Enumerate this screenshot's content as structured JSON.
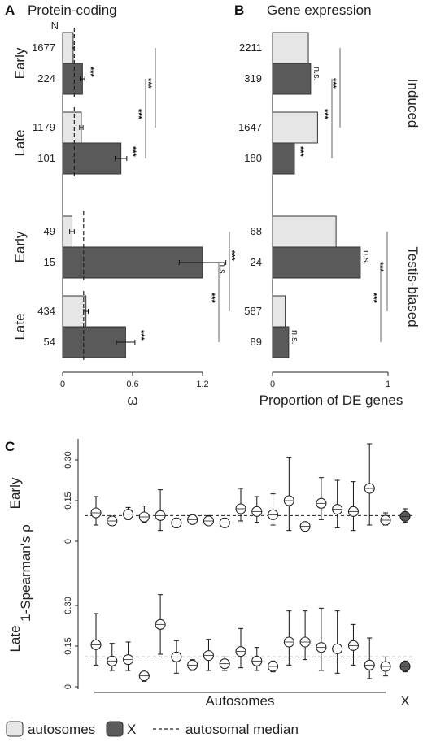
{
  "panels": {
    "a": {
      "letter": "A",
      "title": "Protein-coding"
    },
    "b": {
      "letter": "B",
      "title": "Gene expression"
    },
    "c": {
      "letter": "C"
    }
  },
  "colors": {
    "autosomes": "#e6e6e6",
    "x": "#5a5a5a",
    "outline": "#333333"
  },
  "chart_data": [
    {
      "type": "bar",
      "orientation": "horizontal",
      "panel": "A",
      "title": "Protein-coding",
      "xlabel": "ω",
      "n_header": "N",
      "xlim": [
        0,
        1.2
      ],
      "xticks": [
        "0",
        "0.6",
        "1.2"
      ],
      "groups": [
        {
          "stage": "Early",
          "category": "Induced",
          "median": 0.1,
          "bars": [
            {
              "n": "1677",
              "kind": "autosomes",
              "value": 0.09,
              "err": 0.01,
              "sig": ""
            },
            {
              "n": "224",
              "kind": "X",
              "value": 0.17,
              "err": 0.02,
              "sig": "***"
            }
          ]
        },
        {
          "stage": "Late",
          "category": "Induced",
          "median": 0.1,
          "bars": [
            {
              "n": "1179",
              "kind": "autosomes",
              "value": 0.16,
              "err": 0.015,
              "sig": ""
            },
            {
              "n": "101",
              "kind": "X",
              "value": 0.5,
              "err": 0.05,
              "sig": "***"
            }
          ]
        },
        {
          "stage": "Early",
          "category": "Testis-biased",
          "median": 0.18,
          "bars": [
            {
              "n": "49",
              "kind": "autosomes",
              "value": 0.08,
              "err": 0.02,
              "sig": ""
            },
            {
              "n": "15",
              "kind": "X",
              "value": 1.2,
              "err": 0.2,
              "sig": "***"
            }
          ]
        },
        {
          "stage": "Late",
          "category": "Testis-biased",
          "median": 0.18,
          "bars": [
            {
              "n": "434",
              "kind": "autosomes",
              "value": 0.2,
              "err": 0.02,
              "sig": ""
            },
            {
              "n": "54",
              "kind": "X",
              "value": 0.54,
              "err": 0.08,
              "sig": "***"
            }
          ]
        }
      ],
      "brackets": [
        {
          "from": [
            0,
            1
          ],
          "to": [
            1,
            1
          ],
          "sig": "***"
        },
        {
          "from": [
            0,
            0
          ],
          "to": [
            1,
            0
          ],
          "sig": "***"
        },
        {
          "from": [
            2,
            1
          ],
          "to": [
            3,
            1
          ],
          "sig": "***"
        },
        {
          "from": [
            2,
            0
          ],
          "to": [
            3,
            0
          ],
          "sig": "n.s."
        }
      ]
    },
    {
      "type": "bar",
      "orientation": "horizontal",
      "panel": "B",
      "title": "Gene expression",
      "xlabel": "Proportion of DE genes",
      "xlim": [
        0,
        1
      ],
      "xticks": [
        "0",
        "1"
      ],
      "groups": [
        {
          "stage": "Early",
          "category": "Induced",
          "bars": [
            {
              "n": "2211",
              "kind": "autosomes",
              "value": 0.31
            },
            {
              "n": "319",
              "kind": "X",
              "value": 0.33,
              "sig": "n.s."
            }
          ]
        },
        {
          "stage": "Late",
          "category": "Induced",
          "bars": [
            {
              "n": "1647",
              "kind": "autosomes",
              "value": 0.39
            },
            {
              "n": "180",
              "kind": "X",
              "value": 0.19,
              "sig": "***"
            }
          ]
        },
        {
          "stage": "Early",
          "category": "Testis-biased",
          "bars": [
            {
              "n": "68",
              "kind": "autosomes",
              "value": 0.55
            },
            {
              "n": "24",
              "kind": "X",
              "value": 0.76,
              "sig": "n.s."
            }
          ]
        },
        {
          "stage": "Late",
          "category": "Testis-biased",
          "bars": [
            {
              "n": "587",
              "kind": "autosomes",
              "value": 0.11
            },
            {
              "n": "89",
              "kind": "X",
              "value": 0.14,
              "sig": "n.s."
            }
          ]
        }
      ],
      "brackets": [
        {
          "from": [
            0,
            1
          ],
          "to": [
            1,
            1
          ],
          "sig": "***"
        },
        {
          "from": [
            0,
            0
          ],
          "to": [
            1,
            0
          ],
          "sig": "***"
        },
        {
          "from": [
            2,
            1
          ],
          "to": [
            3,
            1
          ],
          "sig": "***"
        },
        {
          "from": [
            2,
            0
          ],
          "to": [
            3,
            0
          ],
          "sig": "***"
        }
      ],
      "side_labels": [
        "Induced",
        "Testis-biased"
      ]
    },
    {
      "type": "scatter",
      "panel": "C",
      "ylabel": "1-Spearman's ρ",
      "yticks": [
        "0",
        "0.15",
        "0.30"
      ],
      "ylim": [
        0,
        0.36
      ],
      "x_group_labels": [
        "Autosomes",
        "X"
      ],
      "series": [
        {
          "name": "Early",
          "autosomes": [
            {
              "y": 0.105,
              "lo": 0.06,
              "hi": 0.165
            },
            {
              "y": 0.075,
              "lo": 0.06,
              "hi": 0.09
            },
            {
              "y": 0.1,
              "lo": 0.08,
              "hi": 0.125
            },
            {
              "y": 0.09,
              "lo": 0.07,
              "hi": 0.13
            },
            {
              "y": 0.095,
              "lo": 0.04,
              "hi": 0.19
            },
            {
              "y": 0.068,
              "lo": 0.05,
              "hi": 0.085
            },
            {
              "y": 0.08,
              "lo": 0.065,
              "hi": 0.1
            },
            {
              "y": 0.075,
              "lo": 0.06,
              "hi": 0.095
            },
            {
              "y": 0.068,
              "lo": 0.055,
              "hi": 0.085
            },
            {
              "y": 0.12,
              "lo": 0.075,
              "hi": 0.195
            },
            {
              "y": 0.11,
              "lo": 0.07,
              "hi": 0.165
            },
            {
              "y": 0.098,
              "lo": 0.06,
              "hi": 0.175
            },
            {
              "y": 0.15,
              "lo": 0.04,
              "hi": 0.31
            },
            {
              "y": 0.055,
              "lo": 0.045,
              "hi": 0.07
            },
            {
              "y": 0.14,
              "lo": 0.08,
              "hi": 0.235
            },
            {
              "y": 0.118,
              "lo": 0.05,
              "hi": 0.225
            },
            {
              "y": 0.11,
              "lo": 0.04,
              "hi": 0.22
            },
            {
              "y": 0.195,
              "lo": 0.06,
              "hi": 0.36
            },
            {
              "y": 0.078,
              "lo": 0.06,
              "hi": 0.105
            }
          ],
          "x": {
            "y": 0.092,
            "lo": 0.07,
            "hi": 0.12
          },
          "median": 0.095
        },
        {
          "name": "Late",
          "autosomes": [
            {
              "y": 0.155,
              "lo": 0.08,
              "hi": 0.27
            },
            {
              "y": 0.095,
              "lo": 0.06,
              "hi": 0.16
            },
            {
              "y": 0.1,
              "lo": 0.06,
              "hi": 0.165
            },
            {
              "y": 0.04,
              "lo": 0.02,
              "hi": 0.05
            },
            {
              "y": 0.23,
              "lo": 0.12,
              "hi": 0.34
            },
            {
              "y": 0.11,
              "lo": 0.05,
              "hi": 0.17
            },
            {
              "y": 0.08,
              "lo": 0.06,
              "hi": 0.1
            },
            {
              "y": 0.115,
              "lo": 0.06,
              "hi": 0.175
            },
            {
              "y": 0.085,
              "lo": 0.06,
              "hi": 0.11
            },
            {
              "y": 0.13,
              "lo": 0.07,
              "hi": 0.215
            },
            {
              "y": 0.095,
              "lo": 0.06,
              "hi": 0.145
            },
            {
              "y": 0.075,
              "lo": 0.055,
              "hi": 0.095
            },
            {
              "y": 0.165,
              "lo": 0.08,
              "hi": 0.28
            },
            {
              "y": 0.165,
              "lo": 0.1,
              "hi": 0.28
            },
            {
              "y": 0.145,
              "lo": 0.06,
              "hi": 0.29
            },
            {
              "y": 0.14,
              "lo": 0.05,
              "hi": 0.28
            },
            {
              "y": 0.152,
              "lo": 0.08,
              "hi": 0.23
            },
            {
              "y": 0.08,
              "lo": 0.03,
              "hi": 0.18
            },
            {
              "y": 0.075,
              "lo": 0.04,
              "hi": 0.11
            }
          ],
          "x": {
            "y": 0.075,
            "lo": 0.055,
            "hi": 0.095
          },
          "median": 0.11
        }
      ]
    }
  ],
  "legend": {
    "autosomes": "autosomes",
    "x": "X",
    "median": "autosomal median"
  }
}
